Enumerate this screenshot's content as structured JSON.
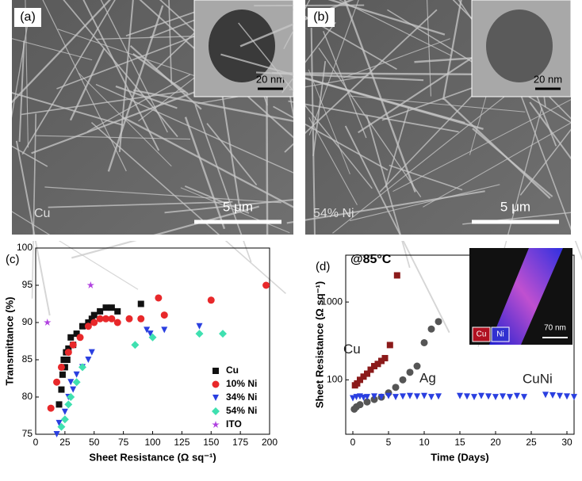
{
  "panels": [
    {
      "label": "(a)",
      "inset_scale": "20 nm",
      "scale": "5 μm",
      "caption": "Cu"
    },
    {
      "label": "(b)",
      "inset_scale": "20 nm",
      "scale": "5 μm",
      "caption": "54% Ni"
    }
  ],
  "chart_data": [
    {
      "type": "scatter",
      "label": "(c)",
      "xlabel": "Sheet Resistance (Ω sq⁻¹)",
      "ylabel": "Transmittance (%)",
      "xlim": [
        0,
        200
      ],
      "ylim": [
        75,
        100
      ],
      "xticks": [
        0,
        25,
        50,
        75,
        100,
        125,
        150,
        175,
        200
      ],
      "yticks": [
        75,
        80,
        85,
        90,
        95,
        100
      ],
      "legend": "lower right",
      "series": [
        {
          "name": "Cu",
          "color": "#111111",
          "marker": "square",
          "x": [
            20,
            22,
            23,
            24,
            25,
            26,
            27,
            28,
            30,
            32,
            35,
            40,
            45,
            48,
            50,
            55,
            60,
            65,
            70,
            90
          ],
          "values": [
            79,
            81,
            83,
            85,
            84,
            86,
            85,
            86.5,
            88,
            87,
            88.5,
            89.5,
            90,
            90.5,
            91,
            91.5,
            92,
            92,
            91.5,
            92.5
          ]
        },
        {
          "name": "10% Ni",
          "color": "#e8282a",
          "marker": "circle",
          "x": [
            13,
            18,
            22,
            28,
            32,
            38,
            45,
            50,
            55,
            60,
            65,
            70,
            80,
            90,
            105,
            110,
            150,
            197
          ],
          "values": [
            78.5,
            82,
            84,
            86,
            87,
            88,
            89.5,
            90,
            90.5,
            90.5,
            90.5,
            90,
            90.5,
            90.5,
            93.3,
            91,
            93,
            95
          ]
        },
        {
          "name": "34% Ni",
          "color": "#2a3fe0",
          "marker": "triangle",
          "x": [
            18,
            20,
            25,
            28,
            30,
            32,
            35,
            40,
            45,
            48,
            95,
            98,
            110,
            140
          ],
          "values": [
            75,
            76.5,
            78,
            80,
            82,
            81,
            83,
            84,
            85,
            86,
            89,
            88.5,
            89,
            89.5
          ]
        },
        {
          "name": "54% Ni",
          "color": "#3fe0b0",
          "marker": "diamond",
          "x": [
            22,
            25,
            28,
            30,
            35,
            40,
            85,
            100,
            140,
            160
          ],
          "values": [
            76,
            77,
            79,
            80,
            82,
            84,
            87,
            88,
            88.5,
            88.5
          ]
        },
        {
          "name": "ITO",
          "color": "#b040e0",
          "marker": "star",
          "x": [
            10,
            47
          ],
          "values": [
            90,
            95
          ]
        }
      ]
    },
    {
      "type": "scatter",
      "label": "(d)",
      "xlabel": "Time (Days)",
      "ylabel": "Sheet Resistance (Ω sq⁻¹)",
      "annotation": "@85°C",
      "xlim": [
        -1,
        31
      ],
      "ylim": [
        20,
        4000
      ],
      "log_y": true,
      "xticks": [
        0,
        5,
        10,
        15,
        20,
        25,
        30
      ],
      "yticks": [
        100,
        1000
      ],
      "inset": {
        "labels": [
          "Cu",
          "Ni"
        ],
        "scale": "70 nm"
      },
      "series": [
        {
          "name": "Cu",
          "color": "#8b1a1a",
          "marker": "square",
          "x": [
            0.3,
            0.6,
            1,
            1.5,
            2,
            2.5,
            3,
            3.5,
            4,
            4.5,
            5.2,
            6.2
          ],
          "values": [
            85,
            90,
            100,
            110,
            120,
            135,
            150,
            160,
            175,
            190,
            280,
            2200
          ]
        },
        {
          "name": "Ag",
          "color": "#555555",
          "marker": "circle",
          "x": [
            0.2,
            0.5,
            1,
            2,
            3,
            4,
            5,
            6,
            7,
            8,
            9,
            10,
            11,
            12
          ],
          "values": [
            42,
            45,
            48,
            52,
            56,
            60,
            68,
            80,
            100,
            125,
            150,
            300,
            450,
            560
          ]
        },
        {
          "name": "CuNi",
          "color": "#2a3fe0",
          "marker": "triangle",
          "x": [
            0,
            0.5,
            1,
            1.5,
            2,
            3,
            4,
            5,
            6,
            7,
            8,
            9,
            10,
            11,
            12,
            15,
            16,
            17,
            18,
            19,
            20,
            21,
            22,
            23,
            24,
            27,
            28,
            29,
            30,
            31
          ],
          "values": [
            58,
            60,
            61,
            59,
            60,
            61,
            60,
            62,
            60,
            61,
            62,
            61,
            62,
            60,
            61,
            62,
            61,
            60,
            62,
            61,
            60,
            61,
            60,
            62,
            60,
            64,
            63,
            62,
            61,
            60
          ]
        }
      ]
    }
  ]
}
